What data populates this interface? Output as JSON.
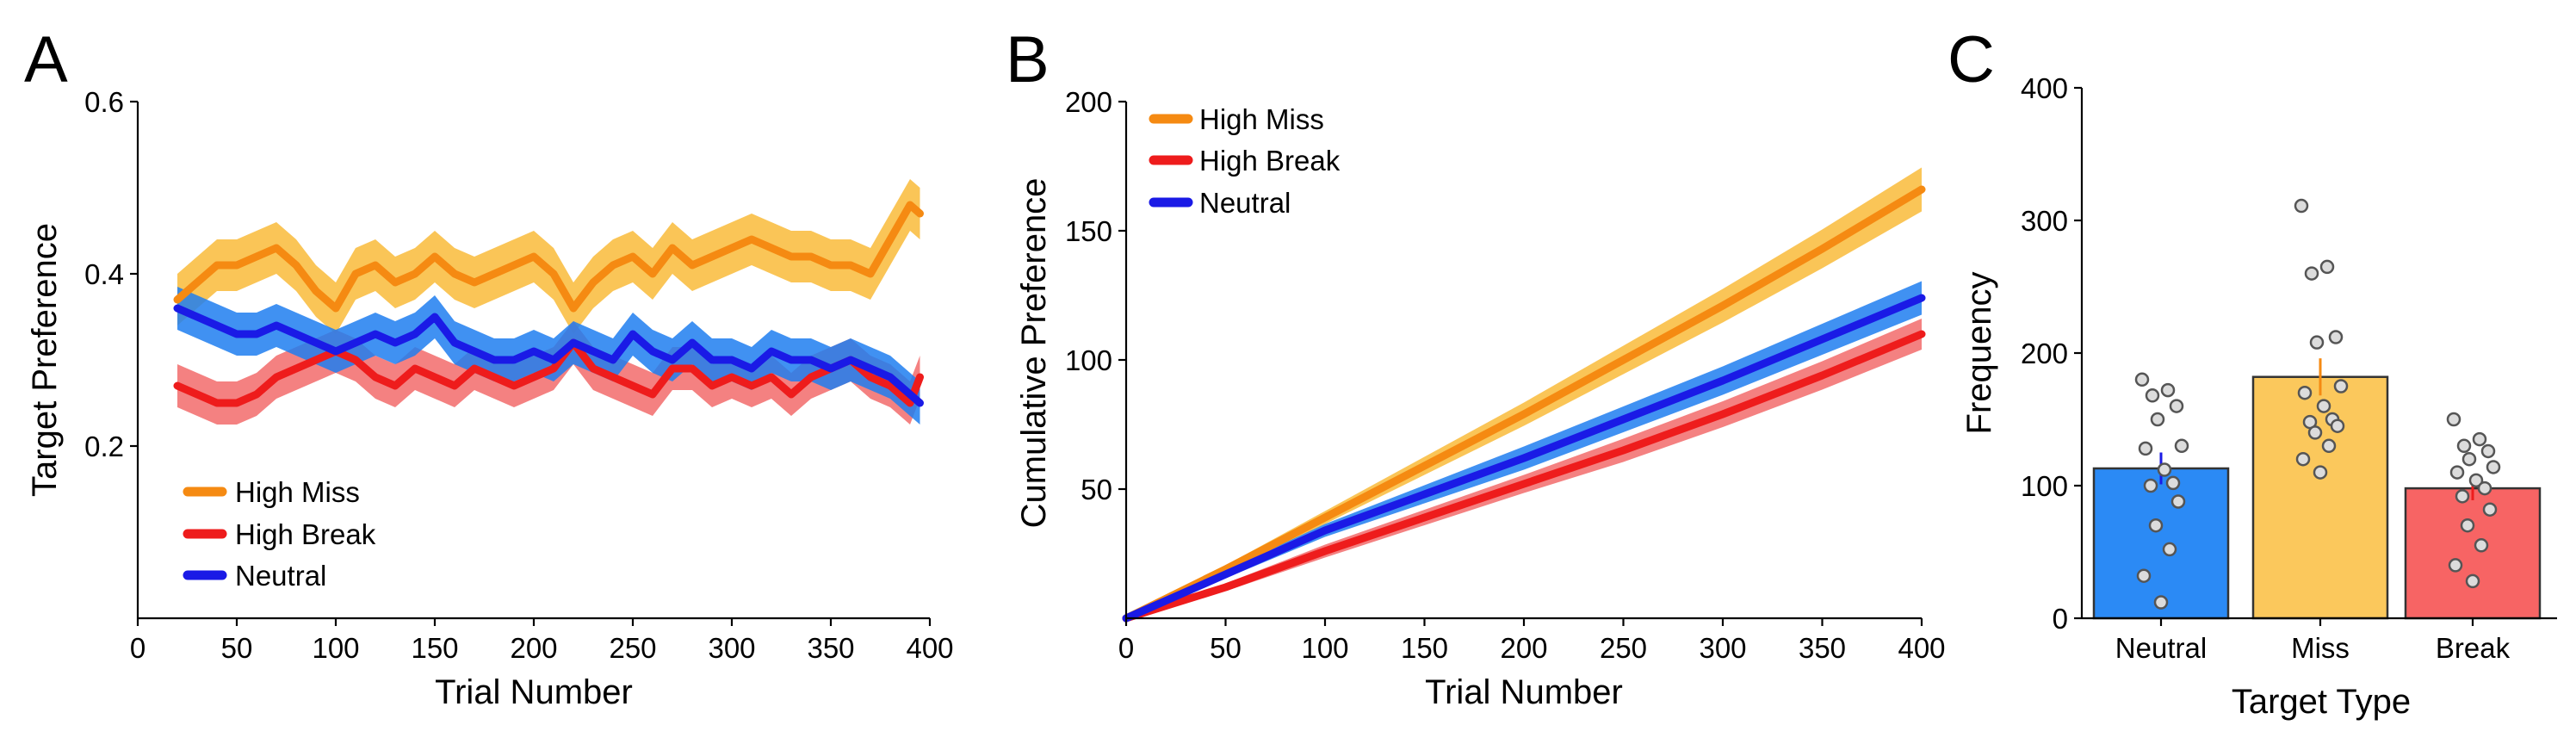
{
  "colors": {
    "high_miss": "#f58a12",
    "high_miss_band": "#f9bb3a",
    "high_break": "#ee1c1c",
    "high_break_band": "#f26b6b",
    "neutral": "#1a1ae6",
    "neutral_band": "#1f7ef0",
    "bar_neutral": "#2b8af5",
    "bar_miss": "#fbc85c",
    "bar_break": "#f76464",
    "err_neutral": "#1a1ae6",
    "err_miss": "#f58a12",
    "err_break": "#ee1c1c",
    "dots": "#9a9a9a"
  },
  "chart_data": [
    {
      "panel": "A",
      "type": "line",
      "xlabel": "Trial Number",
      "ylabel": "Target Preference",
      "xlim": [
        0,
        400
      ],
      "ylim": [
        0.0,
        0.6
      ],
      "xticks": [
        "0",
        "50",
        "100",
        "150",
        "200",
        "250",
        "300",
        "350",
        "400"
      ],
      "yticks": [
        "0.2",
        "0.4",
        "0.6"
      ],
      "legend": "lower-left",
      "series": [
        {
          "name": "High Miss",
          "x": [
            20,
            30,
            40,
            50,
            60,
            70,
            80,
            90,
            100,
            110,
            120,
            130,
            140,
            150,
            160,
            170,
            180,
            190,
            200,
            210,
            220,
            230,
            240,
            250,
            260,
            270,
            280,
            290,
            300,
            310,
            320,
            330,
            340,
            350,
            360,
            370,
            380,
            390,
            395
          ],
          "y": [
            0.37,
            0.39,
            0.41,
            0.41,
            0.42,
            0.43,
            0.41,
            0.38,
            0.36,
            0.4,
            0.41,
            0.39,
            0.4,
            0.42,
            0.4,
            0.39,
            0.4,
            0.41,
            0.42,
            0.4,
            0.36,
            0.39,
            0.41,
            0.42,
            0.4,
            0.43,
            0.41,
            0.42,
            0.43,
            0.44,
            0.43,
            0.42,
            0.42,
            0.41,
            0.41,
            0.4,
            0.44,
            0.48,
            0.47
          ],
          "band": 0.03
        },
        {
          "name": "High Break",
          "x": [
            20,
            30,
            40,
            50,
            60,
            70,
            80,
            90,
            100,
            110,
            120,
            130,
            140,
            150,
            160,
            170,
            180,
            190,
            200,
            210,
            220,
            230,
            240,
            250,
            260,
            270,
            280,
            290,
            300,
            310,
            320,
            330,
            340,
            350,
            360,
            370,
            380,
            390,
            395
          ],
          "y": [
            0.27,
            0.26,
            0.25,
            0.25,
            0.26,
            0.28,
            0.29,
            0.3,
            0.31,
            0.3,
            0.28,
            0.27,
            0.29,
            0.28,
            0.27,
            0.29,
            0.28,
            0.27,
            0.28,
            0.29,
            0.32,
            0.29,
            0.28,
            0.27,
            0.26,
            0.29,
            0.29,
            0.27,
            0.28,
            0.27,
            0.28,
            0.26,
            0.28,
            0.29,
            0.3,
            0.28,
            0.27,
            0.25,
            0.28
          ],
          "band": 0.025
        },
        {
          "name": "Neutral",
          "x": [
            20,
            30,
            40,
            50,
            60,
            70,
            80,
            90,
            100,
            110,
            120,
            130,
            140,
            150,
            160,
            170,
            180,
            190,
            200,
            210,
            220,
            230,
            240,
            250,
            260,
            270,
            280,
            290,
            300,
            310,
            320,
            330,
            340,
            350,
            360,
            370,
            380,
            390,
            395
          ],
          "y": [
            0.36,
            0.35,
            0.34,
            0.33,
            0.33,
            0.34,
            0.33,
            0.32,
            0.31,
            0.32,
            0.33,
            0.32,
            0.33,
            0.35,
            0.32,
            0.31,
            0.3,
            0.3,
            0.31,
            0.3,
            0.32,
            0.31,
            0.3,
            0.33,
            0.31,
            0.3,
            0.32,
            0.3,
            0.3,
            0.29,
            0.31,
            0.3,
            0.3,
            0.29,
            0.3,
            0.29,
            0.28,
            0.26,
            0.25
          ],
          "band": 0.025
        }
      ]
    },
    {
      "panel": "B",
      "type": "line",
      "xlabel": "Trial Number",
      "ylabel": "Cumulative Preference",
      "xlim": [
        0,
        400
      ],
      "ylim": [
        0,
        200
      ],
      "xticks": [
        "0",
        "50",
        "100",
        "150",
        "200",
        "250",
        "300",
        "350",
        "400"
      ],
      "yticks": [
        "50",
        "100",
        "150",
        "200"
      ],
      "legend": "top-left",
      "series": [
        {
          "name": "High Miss",
          "x": [
            0,
            50,
            100,
            150,
            200,
            250,
            300,
            350,
            400
          ],
          "y": [
            0,
            19,
            39,
            59,
            79,
            100,
            121,
            143,
            166
          ],
          "band": [
            0,
            1.5,
            2.5,
            3.5,
            4.5,
            5.5,
            6.5,
            7.5,
            8.5
          ]
        },
        {
          "name": "High Break",
          "x": [
            0,
            50,
            100,
            150,
            200,
            250,
            300,
            350,
            400
          ],
          "y": [
            0,
            12,
            26,
            39,
            52,
            65,
            79,
            94,
            110
          ],
          "band": [
            0,
            1.5,
            2.5,
            3,
            3.5,
            4.5,
            5,
            5.5,
            6
          ]
        },
        {
          "name": "Neutral",
          "x": [
            0,
            50,
            100,
            150,
            200,
            250,
            300,
            350,
            400
          ],
          "y": [
            0,
            17,
            34,
            48,
            62,
            77,
            92,
            108,
            124
          ],
          "band": [
            0,
            1.5,
            2.5,
            3.5,
            4.5,
            5,
            5.5,
            6,
            6.5
          ]
        }
      ]
    },
    {
      "panel": "C",
      "type": "bar",
      "xlabel": "Target Type",
      "ylabel": "Frequency",
      "ylim": [
        0,
        400
      ],
      "yticks": [
        "0",
        "100",
        "200",
        "300",
        "400"
      ],
      "categories": [
        "Neutral",
        "Miss",
        "Break"
      ],
      "values": [
        113,
        182,
        98
      ],
      "errors": [
        12,
        14,
        9
      ],
      "points": [
        [
          180,
          172,
          168,
          160,
          150,
          130,
          128,
          112,
          102,
          100,
          88,
          70,
          52,
          32,
          12
        ],
        [
          311,
          265,
          260,
          212,
          208,
          175,
          170,
          160,
          150,
          148,
          145,
          140,
          130,
          120,
          110
        ],
        [
          150,
          135,
          130,
          126,
          120,
          114,
          110,
          104,
          98,
          92,
          82,
          70,
          55,
          40,
          28
        ]
      ]
    }
  ],
  "panels": {
    "a": {
      "letter": "A",
      "xlabel": "Trial Number",
      "ylabel": "Target Preference",
      "xticks": [
        "0",
        "50",
        "100",
        "150",
        "200",
        "250",
        "300",
        "350",
        "400"
      ],
      "yticks": [
        "0.2",
        "0.4",
        "0.6"
      ],
      "legend": [
        "High Miss",
        "High Break",
        "Neutral"
      ]
    },
    "b": {
      "letter": "B",
      "xlabel": "Trial Number",
      "ylabel": "Cumulative Preference",
      "xticks": [
        "0",
        "50",
        "100",
        "150",
        "200",
        "250",
        "300",
        "350",
        "400"
      ],
      "yticks": [
        "50",
        "100",
        "150",
        "200"
      ],
      "legend": [
        "High Miss",
        "High Break",
        "Neutral"
      ]
    },
    "c": {
      "letter": "C",
      "xlabel": "Target Type",
      "ylabel": "Frequency",
      "yticks": [
        "0",
        "100",
        "200",
        "300",
        "400"
      ],
      "categories": [
        "Neutral",
        "Miss",
        "Break"
      ]
    }
  }
}
